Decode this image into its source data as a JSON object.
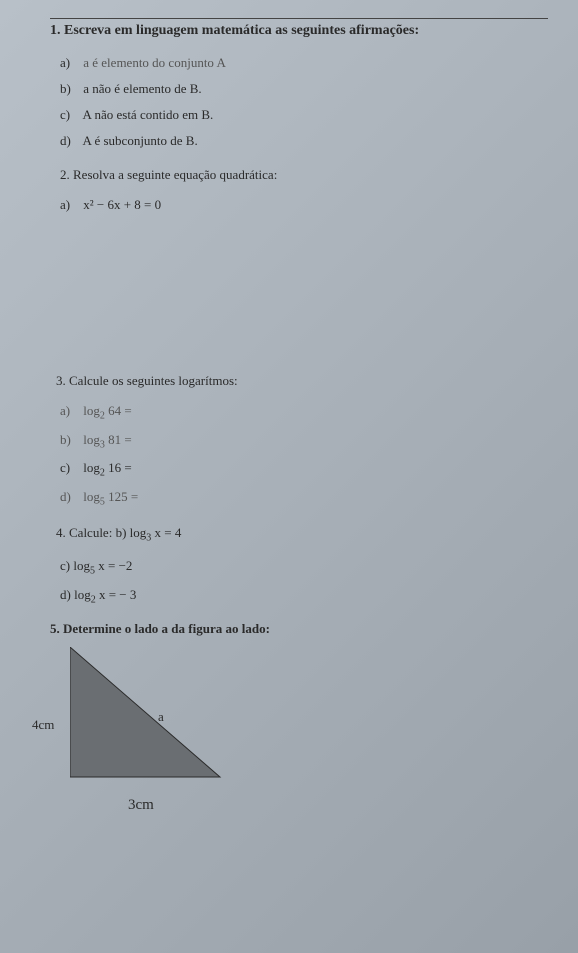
{
  "q1": {
    "heading": "1. Escreva em linguagem matemática as seguintes afirmações:",
    "a": {
      "lbl": "a)",
      "text": "a é elemento do conjunto A"
    },
    "b": {
      "lbl": "b)",
      "text": "a não é elemento de B."
    },
    "c": {
      "lbl": "c)",
      "text": "A não está contido em B."
    },
    "d": {
      "lbl": "d)",
      "text": "A é subconjunto de B."
    }
  },
  "q2": {
    "heading": "2.  Resolva a seguinte equação quadrática:",
    "a": {
      "lbl": "a)",
      "text": "x² − 6x + 8 = 0"
    }
  },
  "q3": {
    "heading": "3. Calcule os seguintes logarítmos:",
    "a": {
      "lbl": "a)",
      "pre": "log",
      "sub": "2",
      "post": " 64 ="
    },
    "b": {
      "lbl": "b)",
      "pre": "log",
      "sub": "3",
      "post": " 81 ="
    },
    "c": {
      "lbl": "c)",
      "pre": "log",
      "sub": "2",
      "post": " 16 ="
    },
    "d": {
      "lbl": "d)",
      "pre": "log",
      "sub": "5",
      "post": " 125 ="
    }
  },
  "q4": {
    "heading_pre": "4. Calcule: b) log",
    "heading_sub": "3",
    "heading_post": " x = 4",
    "c": {
      "lbl": "c) ",
      "pre": "log",
      "sub": "5",
      "post": " x = −2"
    },
    "d": {
      "lbl": "d) ",
      "pre": "log",
      "sub": "2",
      "post": " x = − 3"
    }
  },
  "q5": {
    "heading": "5. Determine o lado a da figura ao lado:",
    "triangle": {
      "left_label": "4cm",
      "hyp_label": "a",
      "bottom_label": "3cm",
      "fill": "#6a6e72",
      "stroke": "#2a2a2a",
      "width": 150,
      "height": 130
    }
  }
}
